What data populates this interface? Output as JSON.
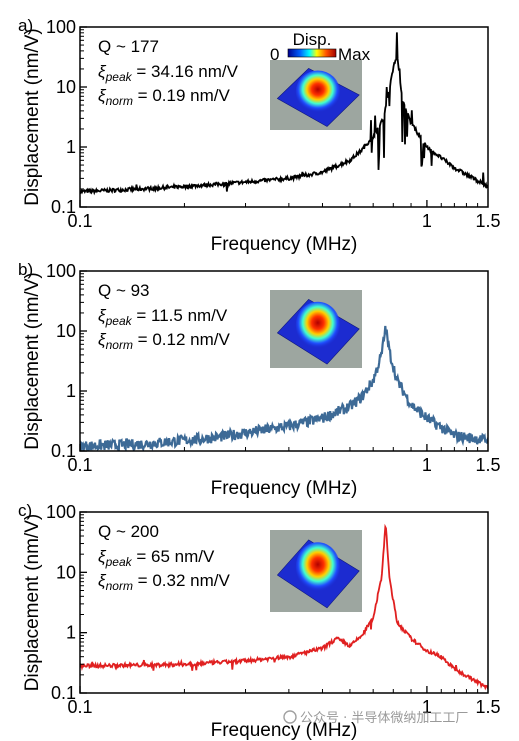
{
  "chart_data": [
    {
      "type": "line",
      "panel_label": "a)",
      "xlabel": "Frequency (MHz)",
      "ylabel": "Displacement (nm/V)",
      "xscale": "log",
      "yscale": "log",
      "xlim": [
        0.1,
        1.5
      ],
      "ylim": [
        0.1,
        100
      ],
      "xticks": [
        "0.1",
        "1",
        "1.5"
      ],
      "yticks": [
        "0.1",
        "1",
        "10",
        "100"
      ],
      "color": "#000000",
      "annotations": [
        "Q ~ 177",
        "34.16 nm/V",
        "0.19 nm/V"
      ],
      "inset_colorbar": {
        "title": "Disp.",
        "min_label": "0",
        "max_label": "Max"
      },
      "series": [
        {
          "x": [
            0.1,
            0.15,
            0.2,
            0.25,
            0.3,
            0.4,
            0.5,
            0.6,
            0.65,
            0.7,
            0.75,
            0.8,
            0.82,
            0.85,
            0.9,
            1.0,
            1.2,
            1.5
          ],
          "y": [
            0.18,
            0.2,
            0.22,
            0.24,
            0.26,
            0.3,
            0.38,
            0.6,
            0.9,
            1.5,
            3.0,
            20,
            34.16,
            6,
            2.5,
            1.0,
            0.45,
            0.22
          ]
        }
      ]
    },
    {
      "type": "line",
      "panel_label": "b)",
      "xlabel": "Frequency (MHz)",
      "ylabel": "Displacement (nm/V)",
      "xscale": "log",
      "yscale": "log",
      "xlim": [
        0.1,
        1.5
      ],
      "ylim": [
        0.1,
        100
      ],
      "xticks": [
        "0.1",
        "1",
        "1.5"
      ],
      "yticks": [
        "0.1",
        "1",
        "10",
        "100"
      ],
      "color": "#3d6a96",
      "annotations": [
        "Q ~ 93",
        "11.5 nm/V",
        "0.12 nm/V"
      ],
      "series": [
        {
          "x": [
            0.1,
            0.15,
            0.2,
            0.25,
            0.3,
            0.4,
            0.5,
            0.6,
            0.65,
            0.7,
            0.74,
            0.76,
            0.78,
            0.82,
            0.9,
            1.0,
            1.2,
            1.5
          ],
          "y": [
            0.12,
            0.13,
            0.15,
            0.17,
            0.2,
            0.26,
            0.35,
            0.55,
            0.8,
            1.5,
            4.0,
            11.5,
            4.5,
            1.5,
            0.6,
            0.35,
            0.18,
            0.15
          ]
        }
      ]
    },
    {
      "type": "line",
      "panel_label": "c)",
      "xlabel": "Frequency (MHz)",
      "ylabel": "Displacement (nm/V)",
      "xscale": "log",
      "yscale": "log",
      "xlim": [
        0.1,
        1.5
      ],
      "ylim": [
        0.1,
        100
      ],
      "xticks": [
        "0.1",
        "1",
        "1.5"
      ],
      "yticks": [
        "0.1",
        "1",
        "10",
        "100"
      ],
      "color": "#e02020",
      "annotations": [
        "Q ~ 200",
        "65 nm/V",
        "0.32 nm/V"
      ],
      "series": [
        {
          "x": [
            0.1,
            0.15,
            0.2,
            0.25,
            0.3,
            0.4,
            0.5,
            0.55,
            0.6,
            0.65,
            0.7,
            0.74,
            0.76,
            0.78,
            0.82,
            0.9,
            1.0,
            1.1,
            1.2,
            1.5
          ],
          "y": [
            0.28,
            0.29,
            0.3,
            0.32,
            0.34,
            0.4,
            0.55,
            0.8,
            0.6,
            0.9,
            1.8,
            8,
            65,
            8,
            1.5,
            0.8,
            0.5,
            0.4,
            0.25,
            0.12
          ]
        }
      ]
    }
  ],
  "watermark": "公众号 · 半导体微纳加工工厂"
}
